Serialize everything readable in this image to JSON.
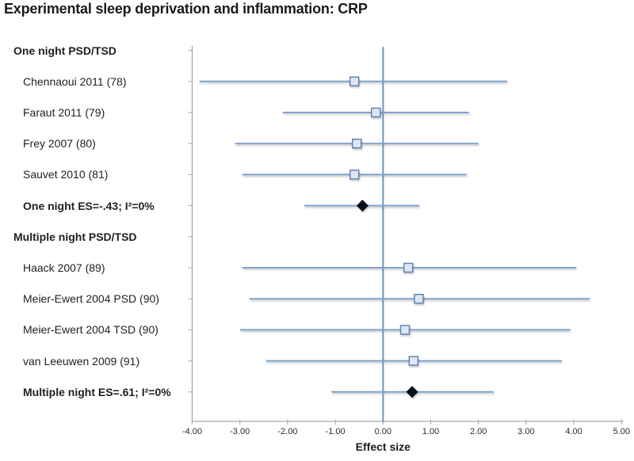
{
  "chart_data": {
    "type": "forest",
    "title": "Experimental sleep deprivation and inflammation: CRP",
    "xlabel": "Effect size",
    "xlim": [
      -4,
      5
    ],
    "xtick_values": [
      -4,
      -3,
      -2,
      -1,
      0,
      1,
      2,
      3,
      4,
      5
    ],
    "xtick_labels": [
      "-4.00",
      "-3.00",
      "-2.00",
      "-1.00",
      "0.00",
      "1.00",
      "2.00",
      "3.00",
      "4.00",
      "5.00"
    ],
    "zero_line_x": 0,
    "grid": false,
    "legend": null,
    "rows": [
      {
        "label": "One night PSD/TSD",
        "kind": "header",
        "est": null,
        "lo": null,
        "hi": null
      },
      {
        "label": "Chennaoui 2011 (78)",
        "kind": "study",
        "est": -0.6,
        "lo": -3.85,
        "hi": 2.6
      },
      {
        "label": "Faraut 2011 (79)",
        "kind": "study",
        "est": -0.15,
        "lo": -2.1,
        "hi": 1.8
      },
      {
        "label": "Frey 2007 (80)",
        "kind": "study",
        "est": -0.55,
        "lo": -3.1,
        "hi": 2.0
      },
      {
        "label": "Sauvet 2010 (81)",
        "kind": "study",
        "est": -0.6,
        "lo": -2.95,
        "hi": 1.75
      },
      {
        "label": "One night ES=-.43; I²=0%",
        "kind": "summary",
        "est": -0.43,
        "lo": -1.65,
        "hi": 0.76
      },
      {
        "label": "Multiple night PSD/TSD",
        "kind": "header",
        "est": null,
        "lo": null,
        "hi": null
      },
      {
        "label": "Haack 2007 (89)",
        "kind": "study",
        "est": 0.53,
        "lo": -2.95,
        "hi": 4.05
      },
      {
        "label": "Meier-Ewert 2004 PSD (90)",
        "kind": "study",
        "est": 0.75,
        "lo": -2.8,
        "hi": 4.33
      },
      {
        "label": "Meier-Ewert 2004 TSD (90)",
        "kind": "study",
        "est": 0.46,
        "lo": -3.0,
        "hi": 3.93
      },
      {
        "label": "van Leeuwen 2009 (91)",
        "kind": "study",
        "est": 0.64,
        "lo": -2.45,
        "hi": 3.75
      },
      {
        "label": "Multiple night ES=.61; I²=0%",
        "kind": "summary",
        "est": 0.61,
        "lo": -1.08,
        "hi": 2.32
      }
    ],
    "colors": {
      "ci_line": "#7da2cf",
      "marker_fill": "#dce6f2",
      "marker_stroke": "#5f7fae",
      "summary_marker": "#0c0e18",
      "zero_line": "#4f81bd",
      "axis": "#a8a8a8",
      "text": "#1f1f1f"
    }
  }
}
